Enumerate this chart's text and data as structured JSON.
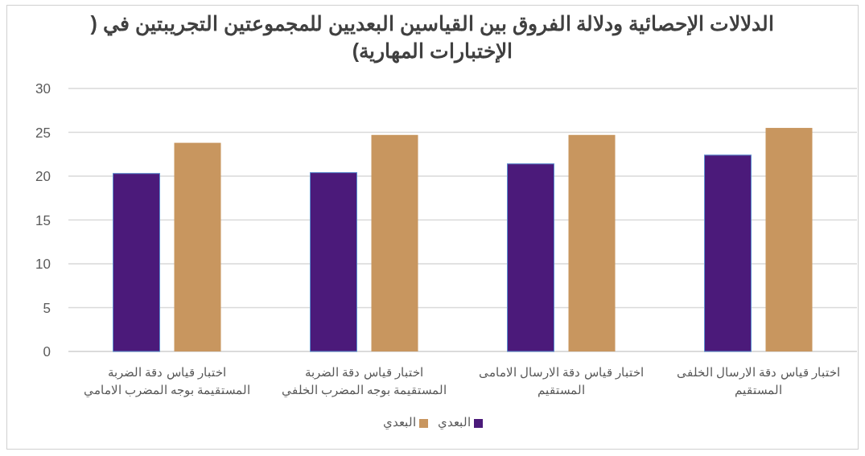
{
  "chart_data": {
    "type": "bar",
    "title": "الدلالات الإحصائية ودلالة الفروق بين القياسين البعديين للمجموعتين التجريبتين في ( الإختبارات المهارية)",
    "categories": [
      "اختبار قياس دقة الضربة المستقيمة بوجه المضرب الامامي",
      "اختبار قياس دقة الضربة المستقيمة بوجه المضرب الخلفي",
      "اختبار قياس دقة الارسال الامامى المستقيم",
      "اختبار قياس دقة الارسال الخلفى المستقيم"
    ],
    "series": [
      {
        "name": "البعدي",
        "color": "#4b1a7a",
        "values": [
          20.3,
          20.4,
          21.4,
          22.4
        ]
      },
      {
        "name": "البعدي",
        "color": "#c8965f",
        "values": [
          23.8,
          24.7,
          24.7,
          25.5
        ]
      }
    ],
    "ylim": [
      0,
      30
    ],
    "yticks": [
      0,
      5,
      10,
      15,
      20,
      25,
      30
    ],
    "grid": true,
    "legend": "bottom"
  }
}
